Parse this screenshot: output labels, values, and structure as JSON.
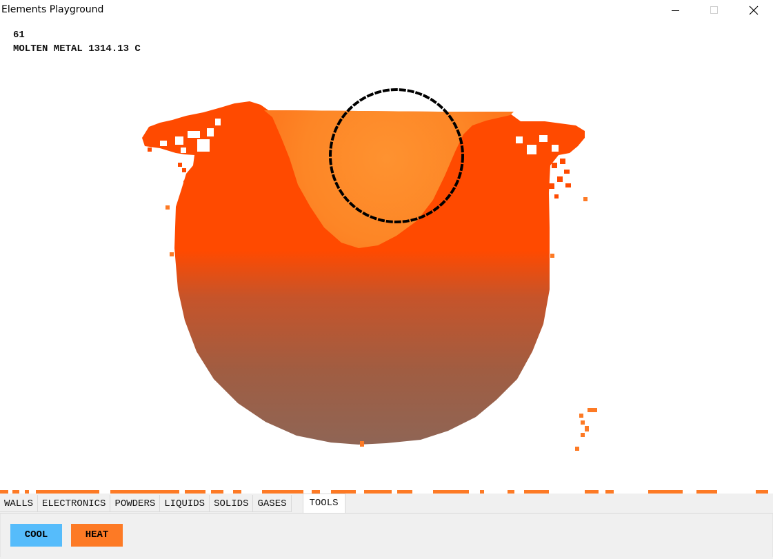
{
  "window": {
    "title": "Elements Playground",
    "controls": [
      "minimize-icon",
      "maximize-icon",
      "close-icon"
    ]
  },
  "hud": {
    "count": "61",
    "cursor_info": "MOLTEN METAL 1314.13 C"
  },
  "canvas": {
    "icons": [
      "brush-circle-icon"
    ],
    "colors": {
      "molten_hot": "#fd8a28",
      "molten_bright": "#ff4a00",
      "molten_cool": "#8f6555",
      "brush": "#000000"
    }
  },
  "tabs": [
    {
      "label": "WALLS"
    },
    {
      "label": "ELECTRONICS"
    },
    {
      "label": "POWDERS"
    },
    {
      "label": "LIQUIDS"
    },
    {
      "label": "SOLIDS"
    },
    {
      "label": "GASES"
    },
    {
      "label": "TOOLS"
    }
  ],
  "active_tab": "TOOLS",
  "tools": [
    {
      "label": "COOL",
      "color": "#56bcfb"
    },
    {
      "label": "HEAT",
      "color": "#fd7a25"
    }
  ]
}
